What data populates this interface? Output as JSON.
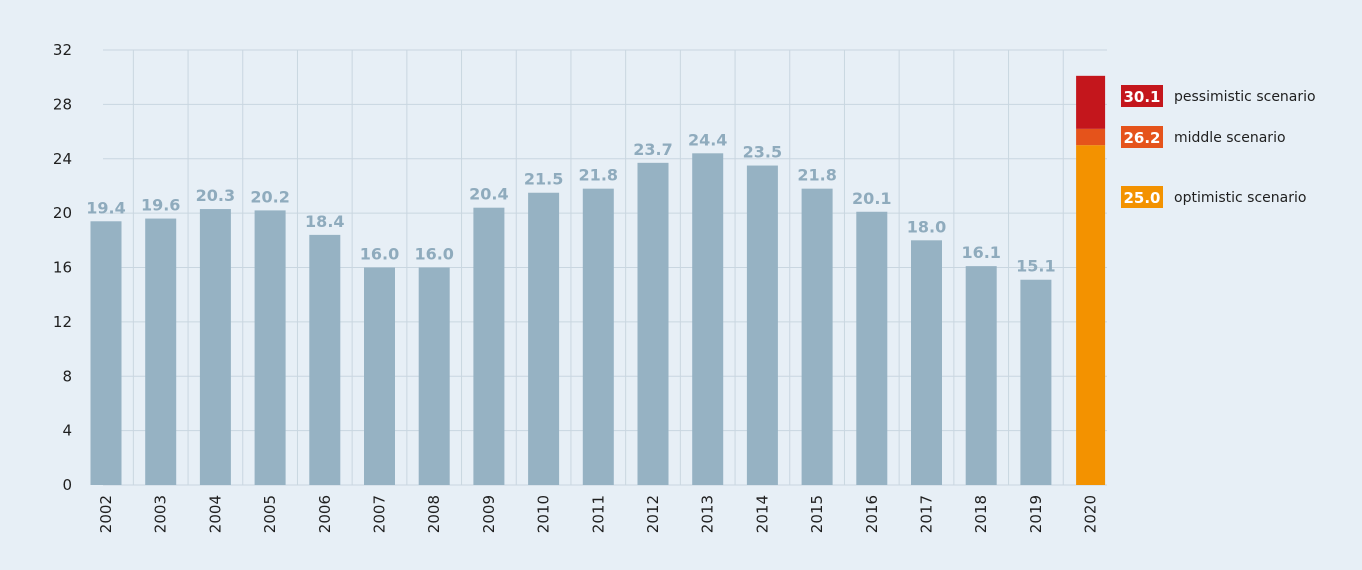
{
  "chart_data": {
    "type": "bar",
    "title": "",
    "xlabel": "",
    "ylabel": "",
    "ylim": [
      0,
      32
    ],
    "yticks": [
      0,
      4,
      8,
      12,
      16,
      20,
      24,
      28,
      32
    ],
    "grid": true,
    "categories": [
      "2002",
      "2003",
      "2004",
      "2005",
      "2006",
      "2007",
      "2008",
      "2009",
      "2010",
      "2011",
      "2012",
      "2013",
      "2014",
      "2015",
      "2016",
      "2017",
      "2018",
      "2019"
    ],
    "values": [
      19.4,
      19.6,
      20.3,
      20.2,
      18.4,
      16.0,
      16.0,
      20.4,
      21.5,
      21.8,
      23.7,
      24.4,
      23.5,
      21.8,
      20.1,
      18.0,
      16.1,
      15.1
    ],
    "value_labels": [
      "19.4",
      "19.6",
      "20.3",
      "20.2",
      "18.4",
      "16.0",
      "16.0",
      "20.4",
      "21.5",
      "21.8",
      "23.7",
      "24.4",
      "23.5",
      "21.8",
      "20.1",
      "18.0",
      "16.1",
      "15.1"
    ],
    "bar_color": "#96b2c3",
    "scenario_category": "2020",
    "scenarios": [
      {
        "name": "optimistic scenario",
        "value": 25.0,
        "label": "25.0",
        "color": "#f39200"
      },
      {
        "name": "middle scenario",
        "value": 26.2,
        "label": "26.2",
        "color": "#e5531b"
      },
      {
        "name": "pessimistic scenario",
        "value": 30.1,
        "label": "30.1",
        "color": "#c4161c"
      }
    ],
    "legend_position": "right"
  }
}
